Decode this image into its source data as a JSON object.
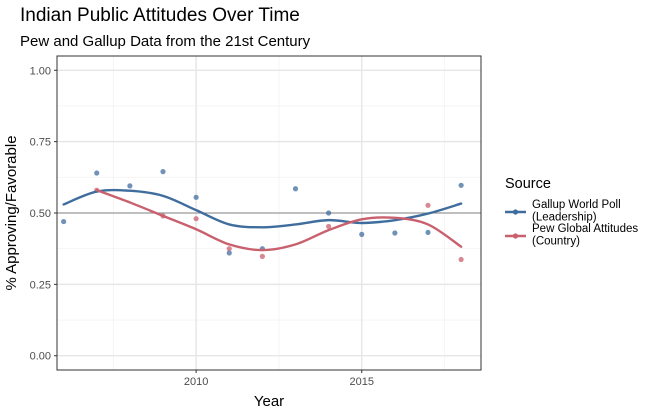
{
  "chart_data": {
    "type": "scatter",
    "title": "Indian Public Attitudes Over Time",
    "subtitle": "Pew and Gallup Data from the 21st Century",
    "xlabel": "Year",
    "ylabel": "% Approving/Favorable",
    "xlim": [
      2005.8,
      2018.6
    ],
    "ylim": [
      -0.05,
      1.05
    ],
    "x_ticks": [
      2010,
      2015
    ],
    "x_tick_labels": [
      "2010",
      "2015"
    ],
    "y_ticks": [
      0,
      0.25,
      0.5,
      0.75,
      1.0
    ],
    "y_tick_labels": [
      "0.00",
      "0.25",
      "0.50",
      "0.75",
      "1.00"
    ],
    "reference_line_y": 0.5,
    "grid": true,
    "legend": {
      "title": "Source",
      "position": "right"
    },
    "series": [
      {
        "name": "Gallup World Poll\n(Leadership)",
        "color": "#3f6d9e",
        "x": [
          2006,
          2007,
          2008,
          2009,
          2010,
          2011,
          2012,
          2013,
          2014,
          2015,
          2016,
          2017,
          2018
        ],
        "y": [
          0.47,
          0.64,
          0.595,
          0.645,
          0.555,
          0.36,
          0.375,
          0.585,
          0.5,
          0.425,
          0.43,
          0.432,
          0.597
        ],
        "smooth_x": [
          2006,
          2007,
          2008,
          2009,
          2010,
          2011,
          2012,
          2013,
          2014,
          2015,
          2016,
          2017,
          2018
        ],
        "smooth_y": [
          0.53,
          0.575,
          0.578,
          0.56,
          0.51,
          0.46,
          0.45,
          0.46,
          0.475,
          0.465,
          0.475,
          0.498,
          0.533
        ]
      },
      {
        "name": "Pew Global Attitudes\n(Country)",
        "color": "#c9606e",
        "x": [
          2007,
          2009,
          2010,
          2011,
          2012,
          2014,
          2017,
          2018
        ],
        "y": [
          0.58,
          0.49,
          0.48,
          0.375,
          0.348,
          0.453,
          0.527,
          0.337
        ],
        "smooth_x": [
          2007,
          2008,
          2009,
          2010,
          2011,
          2012,
          2013,
          2014,
          2015,
          2016,
          2017,
          2018
        ],
        "smooth_y": [
          0.58,
          0.537,
          0.49,
          0.443,
          0.39,
          0.37,
          0.39,
          0.44,
          0.478,
          0.483,
          0.46,
          0.382
        ]
      }
    ]
  }
}
